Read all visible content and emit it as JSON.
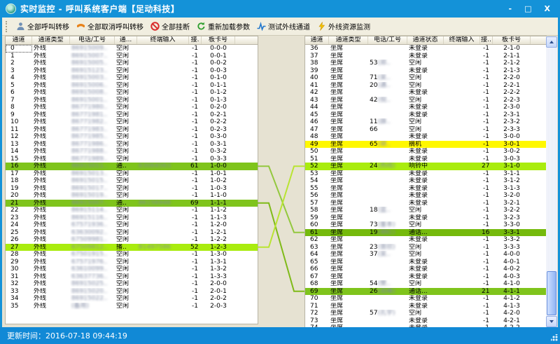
{
  "window": {
    "title": "实时监控 - 呼叫系统客户端【足动科技】",
    "minimize": "-",
    "maximize": "□",
    "close": "X"
  },
  "toolbar": {
    "buttons": [
      {
        "label": "全部呼叫转移",
        "icon": "person-icon"
      },
      {
        "label": "全部取消呼叫转移",
        "icon": "phone-cancel-icon"
      },
      {
        "label": "全部挂断",
        "icon": "hangup-icon"
      },
      {
        "label": "重新加载参数",
        "icon": "reload-icon"
      },
      {
        "label": "测试外线通道",
        "icon": "test-channel-icon"
      },
      {
        "label": "外线资源监测",
        "icon": "lightning-icon"
      }
    ]
  },
  "colors": {
    "title_bar": "#1492d8",
    "status_bar": "#1189d6",
    "hl_mid": "#7fc41c",
    "hl_bright": "#a9ec0e",
    "hl_dark": "#75ba0c",
    "hl_yellow": "#fff800"
  },
  "left_table": {
    "row_type": "外线",
    "focused_row": 0,
    "headers": [
      "通道",
      "通道类型",
      "电话/工号",
      "通...",
      "终端输入",
      "接.",
      "板卡号"
    ],
    "rows": [
      [
        "0",
        "",
        "86915009..",
        "空闲",
        "",
        "-1",
        "0-0-0",
        ""
      ],
      [
        "1",
        "",
        "86915007..",
        "空闲",
        "",
        "-1",
        "0-0-1",
        ""
      ],
      [
        "2",
        "",
        "86915005..",
        "空闲",
        "",
        "-1",
        "0-0-2",
        ""
      ],
      [
        "3",
        "",
        "86915123..",
        "空闲",
        "",
        "-1",
        "0-0-3",
        ""
      ],
      [
        "4",
        "",
        "86915003..",
        "空闲",
        "",
        "-1",
        "0-1-0",
        ""
      ],
      [
        "5",
        "",
        "86915006..",
        "空闲",
        "",
        "-1",
        "0-1-1",
        ""
      ],
      [
        "6",
        "",
        "86915008..",
        "空闲",
        "",
        "-1",
        "0-1-2",
        ""
      ],
      [
        "7",
        "",
        "86915001..",
        "空闲",
        "",
        "-1",
        "0-1-3",
        ""
      ],
      [
        "8",
        "",
        "86771980..",
        "空闲",
        "",
        "-1",
        "0-2-0",
        ""
      ],
      [
        "9",
        "",
        "86771981..",
        "空闲",
        "",
        "-1",
        "0-2-1",
        ""
      ],
      [
        "10",
        "",
        "86771982..",
        "空闲",
        "",
        "-1",
        "0-2-2",
        ""
      ],
      [
        "11",
        "",
        "86771983..",
        "空闲",
        "",
        "-1",
        "0-2-3",
        ""
      ],
      [
        "12",
        "",
        "86771985..",
        "空闲",
        "",
        "-1",
        "0-3-0",
        ""
      ],
      [
        "13",
        "",
        "86771986..",
        "空闲",
        "",
        "-1",
        "0-3-1",
        ""
      ],
      [
        "14",
        "",
        "86771988..",
        "空闲",
        "",
        "-1",
        "0-3-2",
        ""
      ],
      [
        "15",
        "",
        "86771989..",
        "空闲",
        "",
        "-1",
        "0-3-3",
        ""
      ],
      [
        "16",
        "",
        "86915011..",
        "通..",
        "63064563",
        "61",
        "1-0-0",
        "mid"
      ],
      [
        "17",
        "",
        "86915013..",
        "空闲",
        "",
        "-1",
        "1-0-1",
        ""
      ],
      [
        "18",
        "",
        "86915015..",
        "空闲",
        "",
        "-1",
        "1-0-2",
        ""
      ],
      [
        "19",
        "",
        "86915017..",
        "空闲",
        "",
        "-1",
        "1-0-3",
        ""
      ],
      [
        "20",
        "",
        "86915019..",
        "空闲",
        "",
        "-1",
        "1-1-0",
        ""
      ],
      [
        "21",
        "",
        "86915007..",
        "通..",
        "86156948",
        "69",
        "1-1-1",
        "mid"
      ],
      [
        "22",
        "",
        "86915114..",
        "空闲",
        "",
        "-1",
        "1-1-2",
        ""
      ],
      [
        "23",
        "",
        "86915116..",
        "空闲",
        "",
        "-1",
        "1-1-3",
        ""
      ],
      [
        "24",
        "",
        "67571936..",
        "空闲",
        "",
        "-1",
        "1-2-0",
        ""
      ],
      [
        "25",
        "",
        "63630092..",
        "空闲",
        "",
        "-1",
        "1-2-1",
        ""
      ],
      [
        "26",
        "",
        "67509981..",
        "空闲",
        "",
        "-1",
        "1-2-2",
        ""
      ],
      [
        "27",
        "",
        "67509812..",
        "播..",
        "81497586",
        "52",
        "1-2-3",
        "bright"
      ],
      [
        "28",
        "",
        "67501915..",
        "空闲",
        "",
        "-1",
        "1-3-0",
        ""
      ],
      [
        "29",
        "",
        "67571976..",
        "空闲",
        "",
        "-1",
        "1-3-1",
        ""
      ],
      [
        "30",
        "",
        "63610099..",
        "空闲",
        "",
        "-1",
        "1-3-2",
        ""
      ],
      [
        "31",
        "",
        "63637736..",
        "空闲",
        "",
        "-1",
        "1-3-3",
        ""
      ],
      [
        "32",
        "",
        "86915025..",
        "空闲",
        "",
        "-1",
        "2-0-0",
        ""
      ],
      [
        "33",
        "",
        "86915020..",
        "空闲",
        "",
        "-1",
        "2-0-1",
        ""
      ],
      [
        "34",
        "",
        "86915022..",
        "空闲",
        "",
        "-1",
        "2-0-2",
        ""
      ],
      [
        "35",
        "",
        "(备用)",
        "空闲",
        "",
        "-1",
        "2-0-3",
        ""
      ]
    ]
  },
  "right_table": {
    "row_type": "坐席",
    "headers": [
      "通道",
      "通道类型",
      "电话/工号",
      "通道状态",
      "终端输入",
      "接..",
      "板卡号"
    ],
    "rows": [
      [
        "36",
        "",
        "",
        "未登录",
        "",
        "-1",
        "2-1-0",
        ""
      ],
      [
        "37",
        "",
        "",
        "未登录",
        "",
        "-1",
        "2-1-1",
        ""
      ],
      [
        "38",
        "53",
        "(郑..",
        "空闲",
        "",
        "-1",
        "2-1-2",
        ""
      ],
      [
        "39",
        "",
        "",
        "未登录",
        "",
        "-1",
        "2-1-3",
        ""
      ],
      [
        "40",
        "71",
        "(吴..",
        "空闲",
        "",
        "-1",
        "2-2-0",
        ""
      ],
      [
        "41",
        "20",
        "(遇..",
        "空闲",
        "",
        "-1",
        "2-2-1",
        ""
      ],
      [
        "42",
        "",
        "",
        "未登录",
        "",
        "-1",
        "2-2-2",
        ""
      ],
      [
        "43",
        "42",
        "(倪..",
        "空闲",
        "",
        "-1",
        "2-2-3",
        ""
      ],
      [
        "44",
        "",
        "",
        "未登录",
        "",
        "-1",
        "2-3-0",
        ""
      ],
      [
        "45",
        "",
        "",
        "未登录",
        "",
        "-1",
        "2-3-1",
        ""
      ],
      [
        "46",
        "11",
        "(薛..",
        "空闲",
        "",
        "-1",
        "2-3-2",
        ""
      ],
      [
        "47",
        "66",
        "",
        "空闲",
        "",
        "-1",
        "2-3-3",
        ""
      ],
      [
        "48",
        "",
        "",
        "未登录",
        "",
        "-1",
        "3-0-0",
        ""
      ],
      [
        "49",
        "65",
        "(胡..",
        "摘机",
        "",
        "-1",
        "3-0-1",
        "yellow"
      ],
      [
        "50",
        "",
        "",
        "未登录",
        "",
        "-1",
        "3-0-2",
        ""
      ],
      [
        "51",
        "",
        "",
        "未登录",
        "",
        "-1",
        "3-0-3",
        ""
      ],
      [
        "52",
        "24",
        "(热线)",
        "响铃中",
        "",
        "27",
        "3-1-0",
        "bright"
      ],
      [
        "53",
        "",
        "",
        "未登录",
        "",
        "-1",
        "3-1-1",
        ""
      ],
      [
        "54",
        "",
        "",
        "未登录",
        "",
        "-1",
        "3-1-2",
        ""
      ],
      [
        "55",
        "",
        "",
        "未登录",
        "",
        "-1",
        "3-1-3",
        ""
      ],
      [
        "56",
        "",
        "",
        "未登录",
        "",
        "-1",
        "3-2-0",
        ""
      ],
      [
        "57",
        "",
        "",
        "未登录",
        "",
        "-1",
        "3-2-1",
        ""
      ],
      [
        "58",
        "18",
        "(蓝..",
        "空闲",
        "",
        "-1",
        "3-2-2",
        ""
      ],
      [
        "59",
        "",
        "",
        "未登录",
        "",
        "-1",
        "3-2-3",
        ""
      ],
      [
        "60",
        "73",
        "(董本)",
        "空闲",
        "",
        "-1",
        "3-3-0",
        ""
      ],
      [
        "61",
        "19",
        "(胡红)",
        "通话...",
        "",
        "16",
        "3-3-1",
        "dark"
      ],
      [
        "62",
        "",
        "",
        "未登录",
        "",
        "-1",
        "3-3-2",
        ""
      ],
      [
        "63",
        "23",
        "(曾欣)",
        "空闲",
        "",
        "-1",
        "3-3-3",
        ""
      ],
      [
        "64",
        "37",
        "(吴..",
        "空闲",
        "",
        "-1",
        "4-0-0",
        ""
      ],
      [
        "65",
        "",
        "",
        "未登录",
        "",
        "-1",
        "4-0-1",
        ""
      ],
      [
        "66",
        "",
        "",
        "未登录",
        "",
        "-1",
        "4-0-2",
        ""
      ],
      [
        "67",
        "",
        "",
        "未登录",
        "",
        "-1",
        "4-0-3",
        ""
      ],
      [
        "68",
        "54",
        "(樊..",
        "空闲",
        "",
        "-1",
        "4-1-0",
        ""
      ],
      [
        "69",
        "26",
        "(高峰)",
        "通话...",
        "",
        "21",
        "4-1-1",
        "mid"
      ],
      [
        "70",
        "",
        "",
        "未登录",
        "",
        "-1",
        "4-1-2",
        ""
      ],
      [
        "71",
        "",
        "",
        "未登录",
        "",
        "-1",
        "4-1-3",
        ""
      ],
      [
        "72",
        "57",
        "(孔宇)",
        "空闲",
        "",
        "-1",
        "4-2-0",
        ""
      ],
      [
        "73",
        "",
        "",
        "未登录",
        "",
        "-1",
        "4-2-1",
        ""
      ],
      [
        "74",
        "",
        "",
        "未登录",
        "",
        "-1",
        "4-2-2",
        ""
      ]
    ]
  },
  "connections": [
    {
      "from": 16,
      "to": 61,
      "color": "#93c83e"
    },
    {
      "from": 21,
      "to": 69,
      "color": "#7fba18"
    },
    {
      "from": 27,
      "to": 52,
      "color": "#b9e431"
    }
  ],
  "status_bar": {
    "label": "更新时间：",
    "time": "2016-07-18 09:44:19"
  }
}
